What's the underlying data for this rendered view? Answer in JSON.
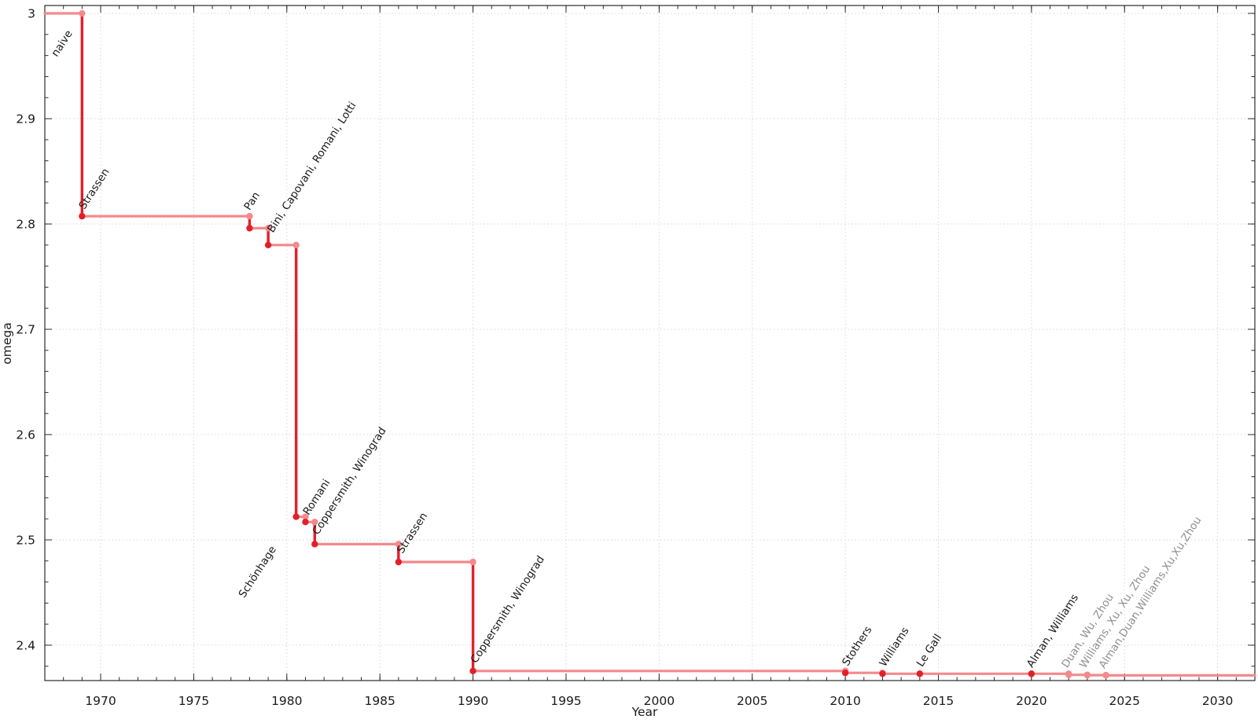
{
  "chart_data": {
    "type": "line",
    "subtype": "step-function-with-point-markers",
    "title": "",
    "xlabel": "Year",
    "ylabel": "omega",
    "xlim": [
      1967,
      2032
    ],
    "ylim": [
      2.3664,
      3.0075
    ],
    "grid": "dotted lines at major ticks, full frame box with inward ticks on all four sides",
    "legend_position": "none",
    "x_major_ticks": [
      1970,
      1975,
      1980,
      1985,
      1990,
      1995,
      2000,
      2005,
      2010,
      2015,
      2020,
      2025,
      2030
    ],
    "x_major_tick_labels": [
      "1970",
      "1975",
      "1980",
      "1985",
      "1990",
      "1995",
      "2000",
      "2005",
      "2010",
      "2015",
      "2020",
      "2025",
      "2030"
    ],
    "x_minor_tick_step": 1,
    "y_major_ticks": [
      3.0,
      2.9,
      2.8,
      2.7,
      2.6,
      2.5,
      2.4
    ],
    "y_major_tick_labels": [
      "3",
      "2.9",
      "2.8",
      "2.7",
      "2.6",
      "2.5",
      "2.4"
    ],
    "y_minor_tick_step": 0.02,
    "series_description": "Best known upper bound on the matrix multiplication exponent omega over time; step line in light red, vertical improvement drops in bright red, filled markers at each record, rotated author annotations at each point; most recent three results shown in gray/light pink.",
    "steps": [
      {
        "label": "naive",
        "x": 1969,
        "omega": 3.0,
        "tone": "dark",
        "initial": true,
        "label_offset": [
          -32,
          56
        ]
      },
      {
        "label": "Strassen",
        "x": 1969,
        "omega": 2.8074,
        "tone": "dark",
        "label_offset": [
          3,
          -8
        ]
      },
      {
        "label": "Pan",
        "x": 1978,
        "omega": 2.796,
        "tone": "dark",
        "label_offset": [
          0,
          -22
        ]
      },
      {
        "label": "Bini, Capovani, Romani, Lotti",
        "x": 1979,
        "omega": 2.78,
        "tone": "dark",
        "label_offset": [
          6,
          -15
        ]
      },
      {
        "label": "Schönhage",
        "x": 1980.5,
        "omega": 2.522,
        "tone": "dark",
        "label_offset": [
          -66,
          104
        ]
      },
      {
        "label": "Romani",
        "x": 1981,
        "omega": 2.517,
        "tone": "dark",
        "label_offset": [
          4,
          -8
        ]
      },
      {
        "label": "Coppersmith, Winograd",
        "x": 1981.5,
        "omega": 2.496,
        "tone": "dark",
        "label_offset": [
          4,
          -11
        ]
      },
      {
        "label": "Strassen",
        "x": 1986,
        "omega": 2.479,
        "tone": "dark",
        "label_offset": [
          5,
          -10
        ]
      },
      {
        "label": "Coppersmith, Winograd",
        "x": 1990,
        "omega": 2.3755,
        "tone": "dark",
        "label_offset": [
          4,
          -9
        ]
      },
      {
        "label": "Stothers",
        "x": 2010,
        "omega": 2.3737,
        "tone": "dark",
        "label_offset": [
          3,
          -8
        ]
      },
      {
        "label": "Williams",
        "x": 2012,
        "omega": 2.3729,
        "tone": "dark",
        "label_offset": [
          3,
          -8
        ]
      },
      {
        "label": "Le Gall",
        "x": 2014,
        "omega": 2.37287,
        "tone": "dark",
        "label_offset": [
          3,
          -8
        ]
      },
      {
        "label": "Alman, Williams",
        "x": 2020,
        "omega": 2.37286,
        "tone": "dark",
        "label_offset": [
          1,
          -7
        ]
      },
      {
        "label": "Duan, Wu, Zhou",
        "x": 2022,
        "omega": 2.37188,
        "tone": "gray",
        "label_offset": [
          -2,
          -8
        ]
      },
      {
        "label": "Williams, Xu, Xu, Zhou",
        "x": 2023,
        "omega": 2.371552,
        "tone": "gray",
        "label_offset": [
          -3,
          -8
        ]
      },
      {
        "label": "Alman,Duan,Williams,Xu,Xu,Zhou",
        "x": 2024,
        "omega": 2.371339,
        "tone": "gray",
        "label_offset": [
          -2,
          -8
        ]
      }
    ],
    "colors": {
      "line_pink": "#f4898c",
      "line_red": "#e2202a",
      "marker_red": "#e2202a",
      "marker_pink": "#f4898c",
      "label_dark": "#1a1a1a",
      "label_gray": "#909090",
      "grid": "#d7d7d7",
      "frame": "#2b2b2b",
      "tick_label": "#1a1a1a"
    },
    "annotation_rotation_deg": -57
  }
}
